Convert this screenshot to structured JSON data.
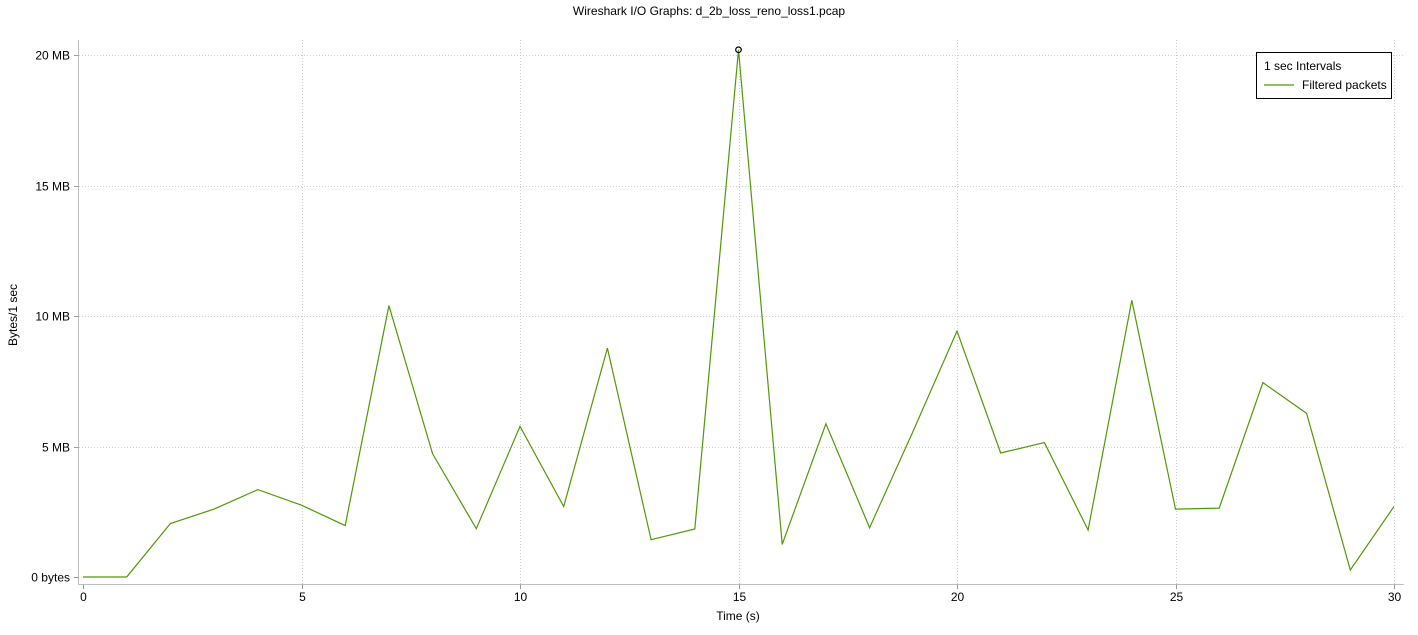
{
  "window": {
    "title": "Wireshark I/O Graphs: d_2b_loss_reno_loss1.pcap"
  },
  "chart_data": {
    "type": "line",
    "title": "Wireshark I/O Graphs: d_2b_loss_reno_loss1.pcap",
    "xlabel": "Time (s)",
    "ylabel": "Bytes/1 sec",
    "xlim": [
      0,
      30
    ],
    "ylim": [
      0,
      20.6
    ],
    "x_ticks": [
      0,
      5,
      10,
      15,
      20,
      25,
      30
    ],
    "x_tick_labels": [
      "0",
      "5",
      "10",
      "15",
      "20",
      "25",
      "30"
    ],
    "y_ticks": [
      0,
      5,
      10,
      15,
      20
    ],
    "y_tick_labels": [
      "0 bytes",
      "5 MB",
      "10 MB",
      "15 MB",
      "20 MB"
    ],
    "y_unit": "MB",
    "grid": true,
    "legend": {
      "placement": "top-right",
      "title": "1 sec Intervals",
      "entries": [
        "Filtered packets"
      ]
    },
    "series": [
      {
        "name": "Filtered packets",
        "color": "#4e9a06",
        "x": [
          0,
          1,
          2,
          3,
          4,
          5,
          6,
          7,
          8,
          9,
          10,
          11,
          12,
          13,
          14,
          15,
          16,
          17,
          18,
          19,
          20,
          21,
          22,
          23,
          24,
          25,
          26,
          27,
          28,
          29,
          30
        ],
        "values": [
          0.0,
          0.0,
          2.05,
          2.6,
          3.35,
          2.75,
          1.97,
          10.4,
          4.72,
          1.85,
          5.77,
          2.7,
          8.77,
          1.43,
          1.84,
          20.2,
          1.25,
          5.87,
          1.89,
          5.6,
          9.42,
          4.75,
          5.15,
          1.8,
          10.6,
          2.6,
          2.64,
          7.45,
          6.27,
          0.27,
          2.7
        ]
      }
    ],
    "highlight_point": {
      "x": 15,
      "y": 20.2
    }
  }
}
